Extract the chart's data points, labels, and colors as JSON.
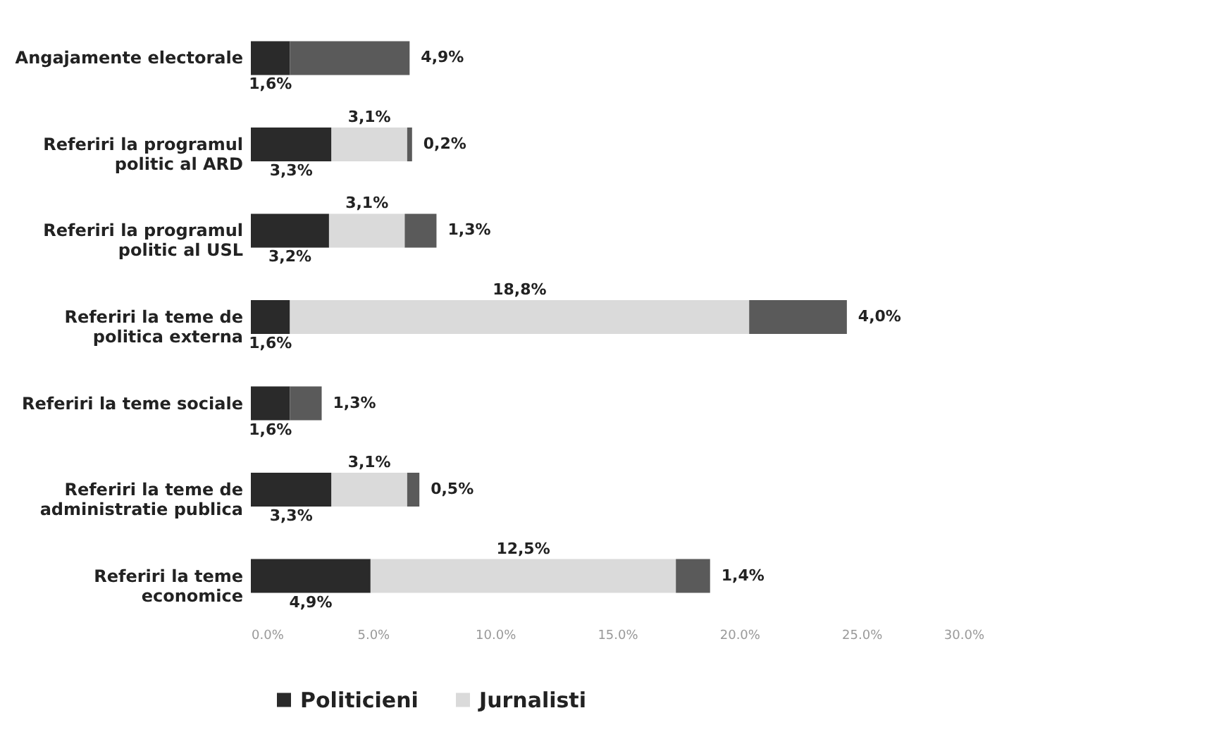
{
  "chart_data": {
    "type": "bar",
    "orientation": "horizontal",
    "stacked": true,
    "categories": [
      "Angajamente electorale",
      "Referiri la programul politic al ARD",
      "Referiri la programul politic al USL",
      "Referiri la teme de politica externa",
      "Referiri la teme sociale",
      "Referiri la teme de administratie publica",
      "Referiri la teme economice"
    ],
    "series": [
      {
        "name": "Politicieni",
        "color": "#2a2a2a",
        "values": [
          1.6,
          3.3,
          3.2,
          1.6,
          1.6,
          3.3,
          4.9
        ],
        "value_labels": [
          "1,6%",
          "3,3%",
          "3,2%",
          "1,6%",
          "1,6%",
          "3,3%",
          "4,9%"
        ]
      },
      {
        "name": "Jurnalisti",
        "color": "#dadada",
        "values": [
          null,
          3.1,
          3.1,
          18.8,
          null,
          3.1,
          12.5
        ],
        "value_labels": [
          null,
          "3,1%",
          "3,1%",
          "18,8%",
          null,
          "3,1%",
          "12,5%"
        ]
      },
      {
        "color": "#5a5a5a",
        "values": [
          4.9,
          0.2,
          1.3,
          4.0,
          1.3,
          0.5,
          1.4
        ],
        "value_labels": [
          "4,9%",
          "0,2%",
          "1,3%",
          "4,0%",
          "1,3%",
          "0,5%",
          "1,4%"
        ]
      }
    ],
    "xlim": [
      0,
      30
    ],
    "xticks": [
      {
        "value": 0,
        "label": "0.0%"
      },
      {
        "value": 5,
        "label": "5.0%"
      },
      {
        "value": 10,
        "label": "10.0%"
      },
      {
        "value": 15,
        "label": "15.0%"
      },
      {
        "value": 20,
        "label": "20.0%"
      },
      {
        "value": 25,
        "label": "25.0%"
      },
      {
        "value": 30,
        "label": "30.0%"
      }
    ],
    "grid": false,
    "legend": "bottom"
  }
}
